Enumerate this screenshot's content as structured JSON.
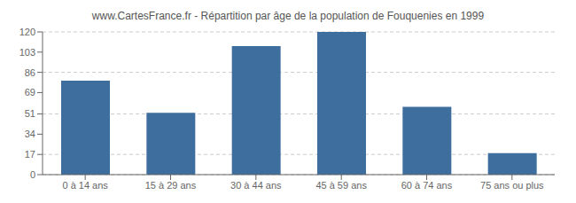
{
  "chart_data": {
    "type": "bar",
    "title": "www.CartesFrance.fr - Répartition par âge de la population de Fouquenies en 1999",
    "categories": [
      "0 à 14 ans",
      "15 à 29 ans",
      "30 à 44 ans",
      "45 à 59 ans",
      "60 à 74 ans",
      "75 ans ou plus"
    ],
    "values": [
      79,
      52,
      108,
      120,
      57,
      18
    ],
    "color": "#3d6e9e",
    "ylim": [
      0,
      120
    ],
    "yticks": [
      0,
      17,
      34,
      51,
      69,
      86,
      103,
      120
    ],
    "grid": true
  }
}
